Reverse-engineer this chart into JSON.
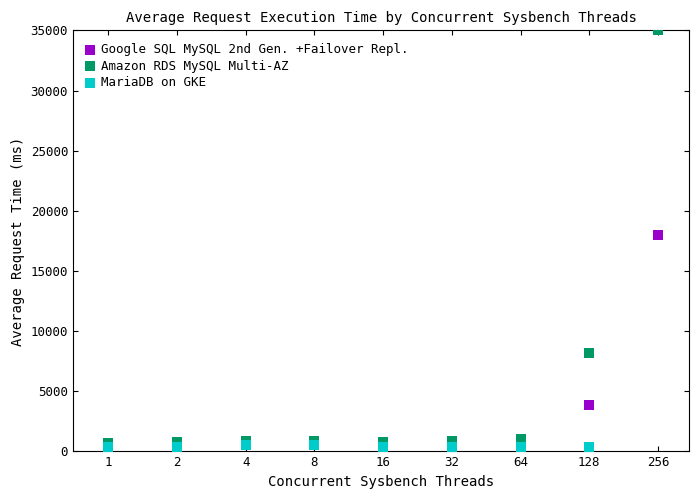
{
  "title": "Average Request Execution Time by Concurrent Sysbench Threads",
  "xlabel": "Concurrent Sysbench Threads",
  "ylabel": "Average Request Time (ms)",
  "threads": [
    1,
    2,
    4,
    8,
    16,
    32,
    64,
    128,
    256
  ],
  "series": [
    {
      "label": "Google SQL MySQL 2nd Gen. +Failover Repl.",
      "color": "#9900cc",
      "marker": "s",
      "values": [
        150,
        null,
        null,
        null,
        null,
        null,
        null,
        3900,
        18000
      ]
    },
    {
      "label": "Amazon RDS MySQL Multi-AZ",
      "color": "#009966",
      "marker": "s",
      "values": [
        700,
        800,
        900,
        900,
        800,
        900,
        1050,
        8200,
        35000
      ]
    },
    {
      "label": "MariaDB on GKE",
      "color": "#00cccc",
      "marker": "s",
      "values": [
        400,
        400,
        500,
        500,
        400,
        400,
        400,
        400,
        null
      ]
    }
  ],
  "ylim": [
    0,
    35000
  ],
  "yticks": [
    0,
    5000,
    10000,
    15000,
    20000,
    25000,
    30000,
    35000
  ],
  "background_color": "#ffffff",
  "font_family": "monospace",
  "title_fontsize": 10,
  "label_fontsize": 10,
  "tick_fontsize": 9,
  "legend_fontsize": 9
}
